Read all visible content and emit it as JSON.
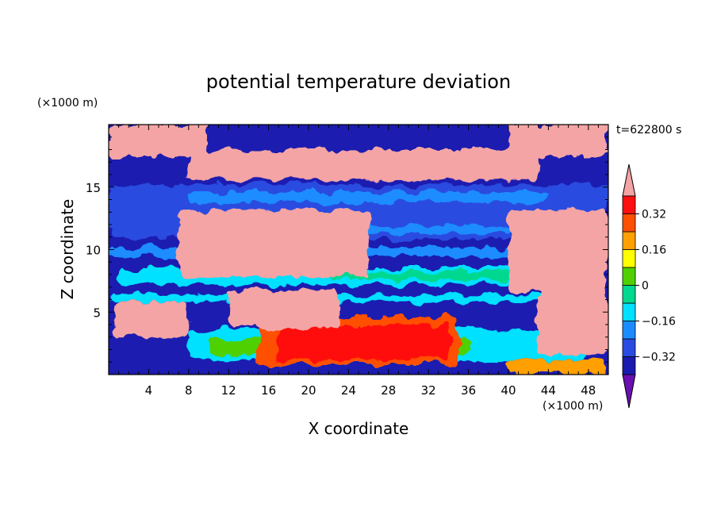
{
  "chart_data": {
    "type": "heatmap",
    "title": "potential temperature deviation",
    "xlabel": "X coordinate",
    "ylabel": "Z coordinate",
    "x_unit": "(×1000 m)",
    "y_unit": "(×1000 m)",
    "time_label": "t=622800 s",
    "xlim": [
      0,
      50
    ],
    "ylim": [
      0,
      20
    ],
    "x_ticks": [
      4,
      8,
      12,
      16,
      20,
      24,
      28,
      32,
      36,
      40,
      44,
      48
    ],
    "y_ticks": [
      5,
      10,
      15
    ],
    "colorbar": {
      "labels": [
        "0.32",
        "0.16",
        "0",
        "−0.16",
        "−0.32"
      ],
      "label_values": [
        0.32,
        0.16,
        0,
        -0.16,
        -0.32
      ],
      "levels": [
        -0.4,
        -0.32,
        -0.24,
        -0.16,
        -0.08,
        0,
        0.08,
        0.16,
        0.24,
        0.32,
        0.4
      ],
      "colors": [
        "#6a0fb0",
        "#1a1ab0",
        "#2a4be0",
        "#1a8cff",
        "#00e0ff",
        "#00d890",
        "#50d000",
        "#ffff00",
        "#ffa000",
        "#ff5000",
        "#ff1010",
        "#f4a4a4"
      ],
      "extend": "both"
    },
    "regions": [
      {
        "value": -0.36,
        "x": [
          0,
          50
        ],
        "z": [
          0.4,
          20
        ]
      },
      {
        "value": -0.3,
        "x": [
          0,
          50
        ],
        "z": [
          10.8,
          15.2
        ]
      },
      {
        "value": -0.18,
        "x": [
          8,
          44
        ],
        "z": [
          13.8,
          14.6
        ]
      },
      {
        "value": -0.2,
        "x": [
          14,
          40
        ],
        "z": [
          11.3,
          11.9
        ]
      },
      {
        "value": -0.22,
        "x": [
          0,
          50
        ],
        "z": [
          9.4,
          10.2
        ]
      },
      {
        "value": -0.1,
        "x": [
          1,
          48
        ],
        "z": [
          7.2,
          8.6
        ]
      },
      {
        "value": -0.06,
        "x": [
          22,
          40
        ],
        "z": [
          7.6,
          8.3
        ]
      },
      {
        "value": -0.16,
        "x": [
          0,
          50
        ],
        "z": [
          5.8,
          6.4
        ]
      },
      {
        "value": -0.1,
        "x": [
          8,
          48
        ],
        "z": [
          1.2,
          3.6
        ]
      },
      {
        "value": 0.05,
        "x": [
          10,
          36
        ],
        "z": [
          1.6,
          2.8
        ]
      },
      {
        "value": 0.1,
        "x": [
          16,
          34
        ],
        "z": [
          0.8,
          2.6
        ]
      },
      {
        "value": 0.2,
        "x": [
          40,
          50
        ],
        "z": [
          0.1,
          1.2
        ]
      },
      {
        "value": 0.26,
        "x": [
          15,
          35
        ],
        "z": [
          0.8,
          4.6
        ]
      },
      {
        "value": 0.36,
        "x": [
          17,
          34
        ],
        "z": [
          1.2,
          4.0
        ]
      },
      {
        "value": 0.5,
        "x": [
          0,
          50
        ],
        "z": [
          17.4,
          20
        ]
      },
      {
        "value": 0.5,
        "x": [
          8,
          43
        ],
        "z": [
          15.6,
          17.6
        ]
      },
      {
        "value": 0.5,
        "x": [
          7,
          26
        ],
        "z": [
          7.8,
          13.2
        ]
      },
      {
        "value": 0.5,
        "x": [
          40,
          50
        ],
        "z": [
          6.6,
          13.2
        ]
      },
      {
        "value": 0.5,
        "x": [
          43,
          50
        ],
        "z": [
          1.6,
          8.4
        ]
      },
      {
        "value": 0.5,
        "x": [
          0.5,
          8
        ],
        "z": [
          3.0,
          5.8
        ]
      },
      {
        "value": 0.5,
        "x": [
          12,
          23
        ],
        "z": [
          3.8,
          6.8
        ]
      },
      {
        "value": -0.36,
        "x": [
          10,
          40
        ],
        "z": [
          18.0,
          20
        ]
      }
    ]
  }
}
